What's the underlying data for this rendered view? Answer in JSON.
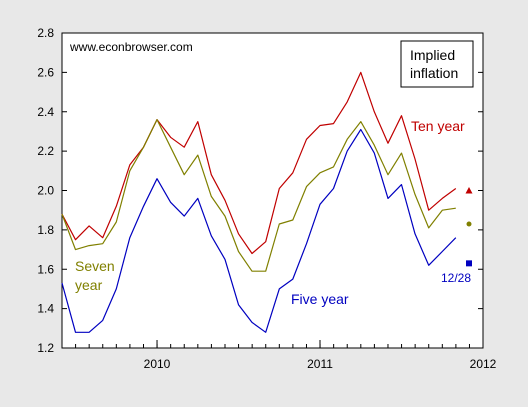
{
  "chart_data": {
    "type": "line",
    "source_note": "www.econbrowser.com",
    "legend_box": [
      "Implied",
      "inflation"
    ],
    "annotation_date": "12/28",
    "x_ticks": [
      "2010",
      "2011",
      "2012"
    ],
    "y_ticks": [
      "1.2",
      "1.4",
      "1.6",
      "1.8",
      "2.0",
      "2.2",
      "2.4",
      "2.6",
      "2.8"
    ],
    "ylim": [
      1.2,
      2.8
    ],
    "xlim": [
      2009.417,
      2012.0
    ],
    "grid": false,
    "series": [
      {
        "name": "Ten year",
        "color": "#c00000",
        "x": [
          2009.417,
          2009.5,
          2009.583,
          2009.667,
          2009.75,
          2009.833,
          2009.917,
          2010.0,
          2010.083,
          2010.167,
          2010.25,
          2010.333,
          2010.417,
          2010.5,
          2010.583,
          2010.667,
          2010.75,
          2010.833,
          2010.917,
          2011.0,
          2011.083,
          2011.167,
          2011.25,
          2011.333,
          2011.417,
          2011.5,
          2011.583,
          2011.667,
          2011.75,
          2011.833,
          2011.917
        ],
        "values": [
          1.88,
          1.75,
          1.82,
          1.76,
          1.92,
          2.13,
          2.22,
          2.36,
          2.27,
          2.22,
          2.35,
          2.08,
          1.95,
          1.78,
          1.68,
          1.74,
          2.01,
          2.09,
          2.26,
          2.33,
          2.34,
          2.45,
          2.6,
          2.4,
          2.24,
          2.38,
          2.16,
          1.9,
          1.96,
          2.01,
          null
        ],
        "marker_value": 2.0,
        "marker_shape": "triangle"
      },
      {
        "name": "Seven year",
        "color": "#808000",
        "x": [
          2009.417,
          2009.5,
          2009.583,
          2009.667,
          2009.75,
          2009.833,
          2009.917,
          2010.0,
          2010.083,
          2010.167,
          2010.25,
          2010.333,
          2010.417,
          2010.5,
          2010.583,
          2010.667,
          2010.75,
          2010.833,
          2010.917,
          2011.0,
          2011.083,
          2011.167,
          2011.25,
          2011.333,
          2011.417,
          2011.5,
          2011.583,
          2011.667,
          2011.75,
          2011.833,
          2011.917
        ],
        "values": [
          1.88,
          1.7,
          1.72,
          1.73,
          1.84,
          2.1,
          2.22,
          2.36,
          2.22,
          2.08,
          2.18,
          1.97,
          1.87,
          1.69,
          1.59,
          1.59,
          1.83,
          1.85,
          2.02,
          2.09,
          2.12,
          2.26,
          2.35,
          2.23,
          2.08,
          2.19,
          1.98,
          1.81,
          1.9,
          1.91,
          null
        ],
        "marker_value": 1.83,
        "marker_shape": "circle"
      },
      {
        "name": "Five year",
        "color": "#0000c0",
        "x": [
          2009.417,
          2009.5,
          2009.583,
          2009.667,
          2009.75,
          2009.833,
          2009.917,
          2010.0,
          2010.083,
          2010.167,
          2010.25,
          2010.333,
          2010.417,
          2010.5,
          2010.583,
          2010.667,
          2010.75,
          2010.833,
          2010.917,
          2011.0,
          2011.083,
          2011.167,
          2011.25,
          2011.333,
          2011.417,
          2011.5,
          2011.583,
          2011.667,
          2011.75,
          2011.833,
          2011.917
        ],
        "values": [
          1.53,
          1.28,
          1.28,
          1.34,
          1.5,
          1.76,
          1.92,
          2.06,
          1.94,
          1.87,
          1.96,
          1.77,
          1.65,
          1.42,
          1.33,
          1.28,
          1.5,
          1.55,
          1.73,
          1.93,
          2.01,
          2.2,
          2.31,
          2.19,
          1.96,
          2.03,
          1.78,
          1.62,
          1.69,
          1.76,
          null
        ],
        "marker_value": 1.63,
        "marker_shape": "square"
      }
    ],
    "series_labels": [
      "Ten year",
      "Seven",
      "year",
      "Five year"
    ]
  }
}
